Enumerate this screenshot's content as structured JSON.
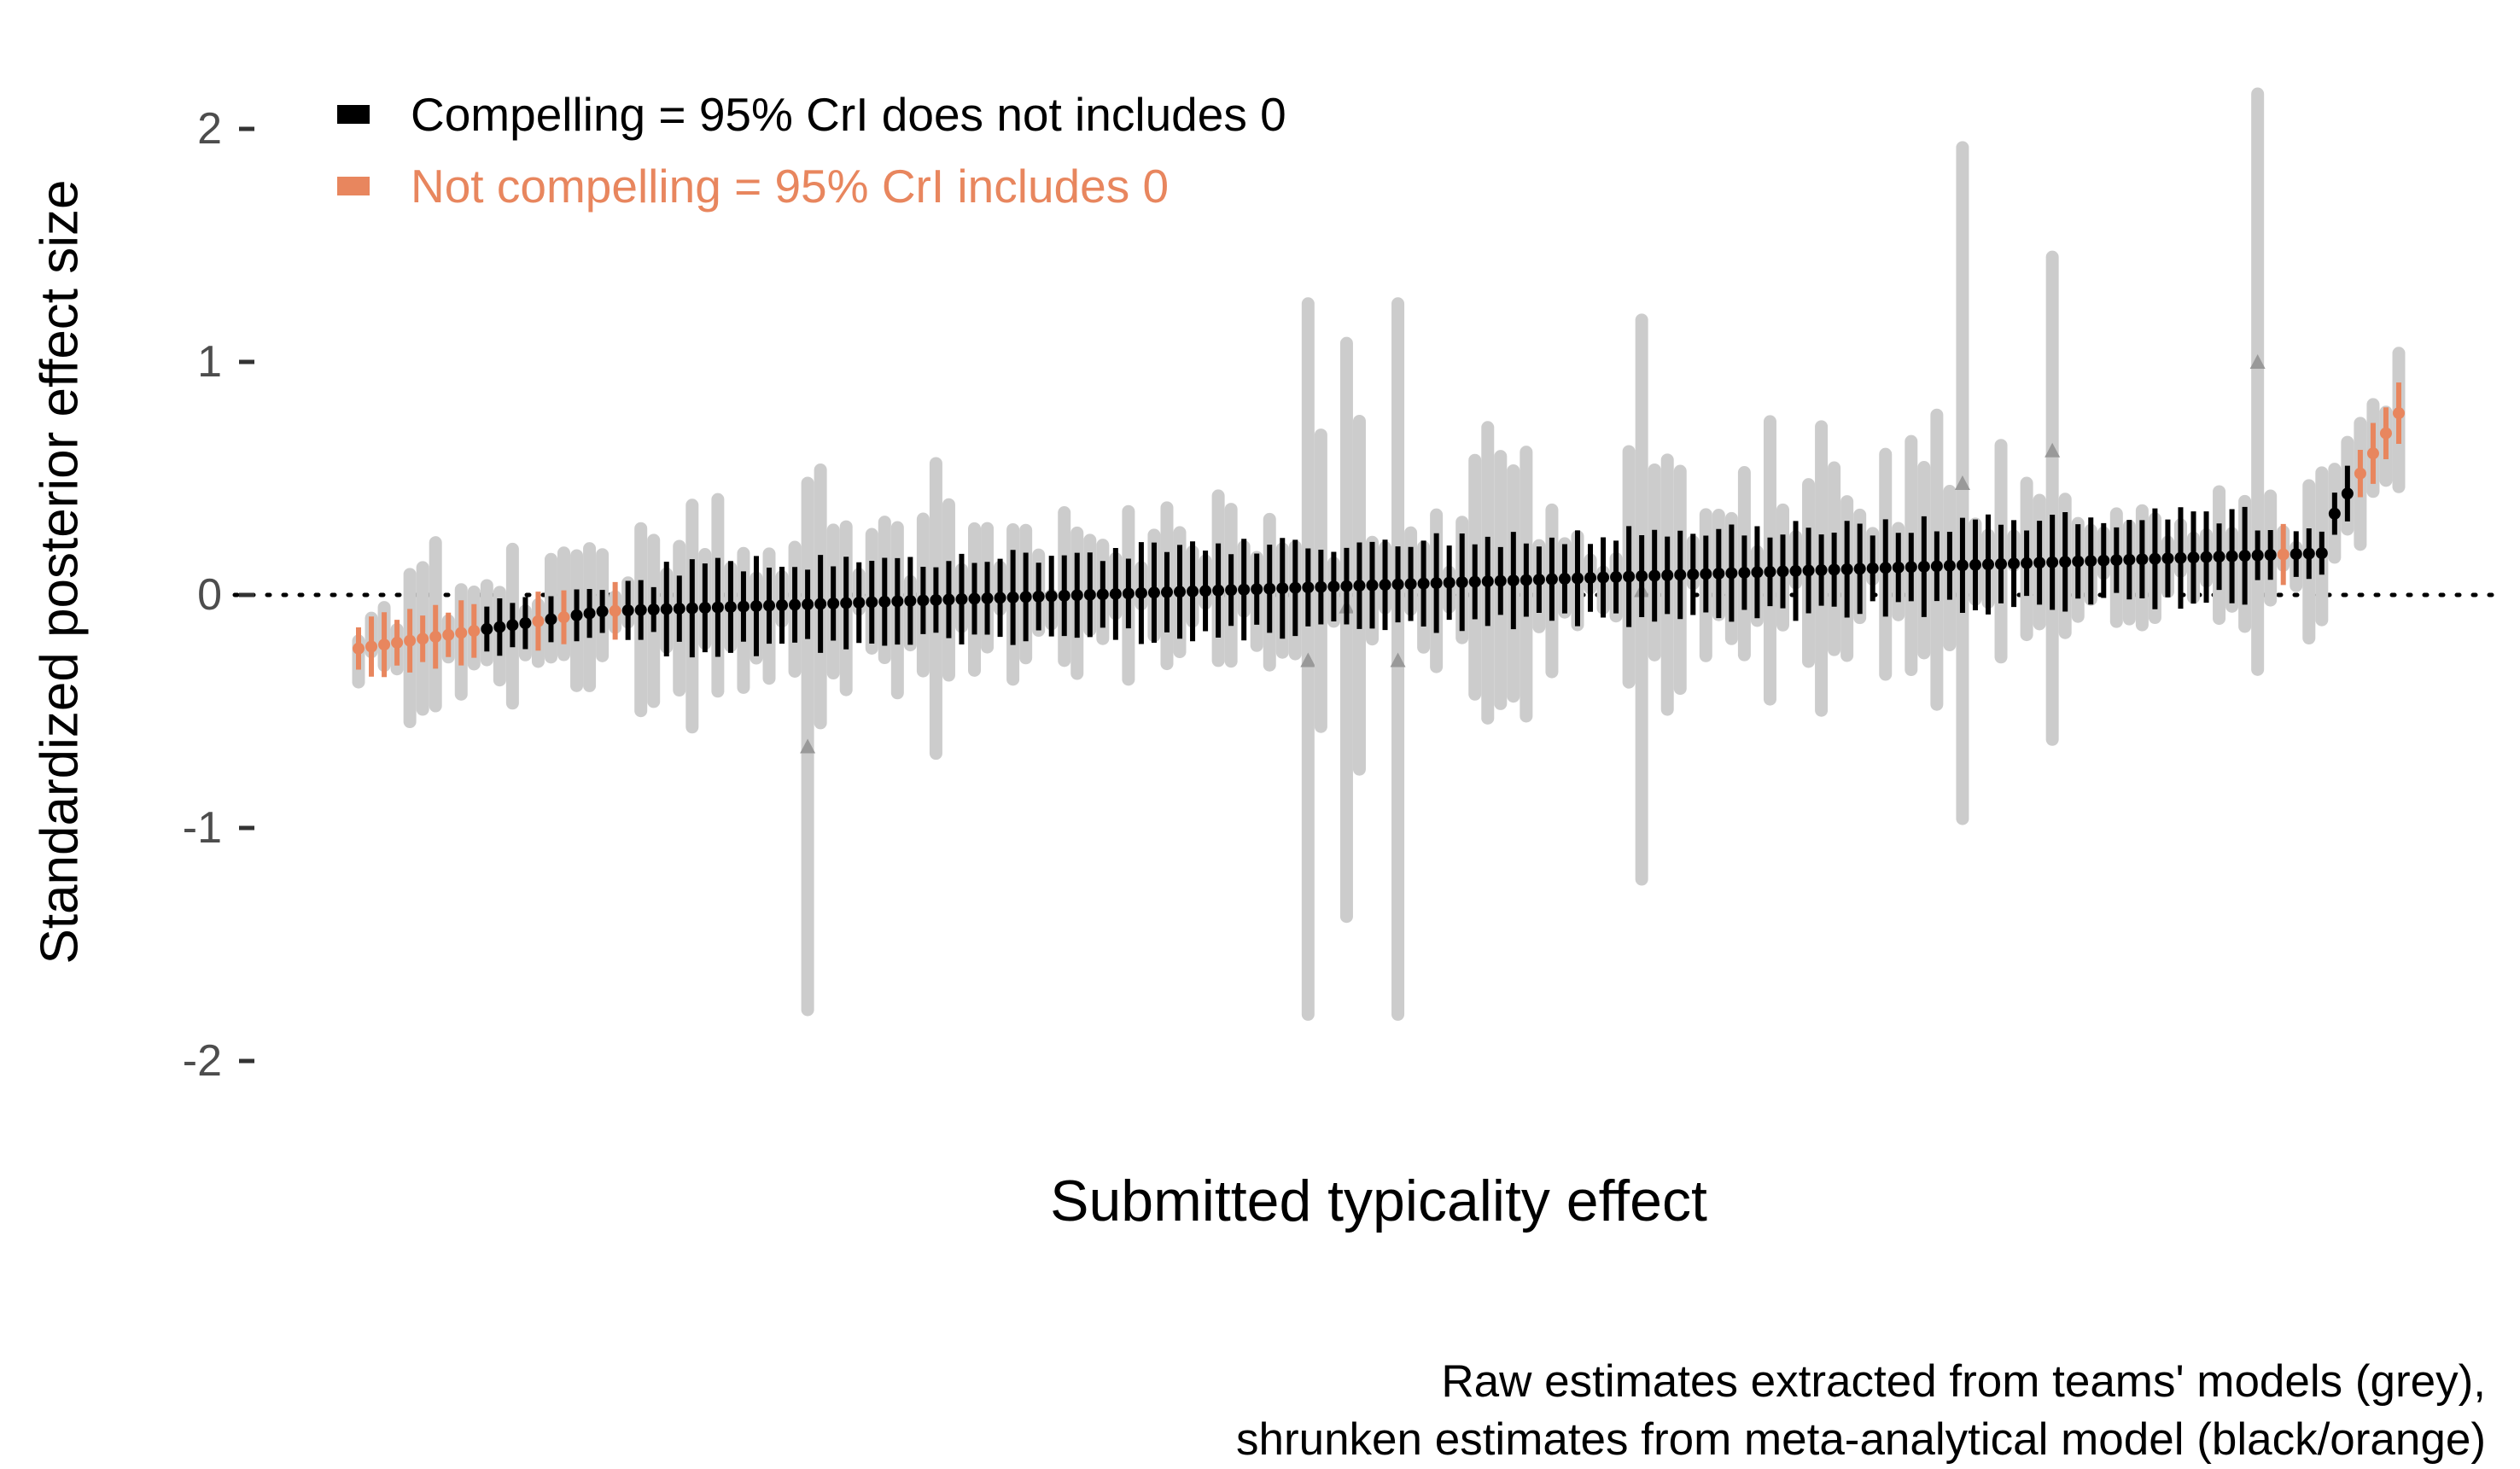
{
  "chart_data": {
    "type": "errorbar",
    "ylabel": "Standardized posterior effect size",
    "xlabel": "Submitted typicality effect",
    "caption_lines": [
      "Raw estimates extracted from teams' models (grey),",
      "shrunken estimates from meta-analytical model (black/orange)"
    ],
    "ylim": [
      -2,
      2
    ],
    "yticks": [
      {
        "value": 2,
        "label": "2"
      },
      {
        "value": 1,
        "label": "1"
      },
      {
        "value": 0,
        "label": "0"
      },
      {
        "value": -1,
        "label": "-1"
      },
      {
        "value": -2,
        "label": "-2"
      }
    ],
    "reference_line": {
      "y": 0,
      "style": "dotted"
    },
    "legend_placement": "top-left",
    "legend": [
      {
        "label": "Compelling = 95% CrI does not includes 0",
        "color": "#000000"
      },
      {
        "label": "Not compelling = 95% CrI includes 0",
        "color": "#E8865E"
      }
    ],
    "colors": {
      "raw": "#cccccc",
      "raw_marker": "#999999",
      "compelling": "#000000",
      "not_compelling": "#E8865E"
    },
    "n_analyses": 160,
    "shrunk_estimate_range": [
      -0.23,
      0.78
    ],
    "notable_raw_intervals": [
      {
        "index": 35,
        "low": -1.78,
        "high": 0.48,
        "estimate": -0.65
      },
      {
        "index": 74,
        "low": -1.8,
        "high": 1.25,
        "estimate": -0.28
      },
      {
        "index": 77,
        "low": -1.38,
        "high": 1.08,
        "estimate": -0.05
      },
      {
        "index": 81,
        "low": -1.8,
        "high": 1.25,
        "estimate": -0.28
      },
      {
        "index": 100,
        "low": -1.22,
        "high": 1.18,
        "estimate": 0.02
      },
      {
        "index": 125,
        "low": -0.96,
        "high": 1.92,
        "estimate": 0.48
      },
      {
        "index": 132,
        "low": -0.62,
        "high": 1.45,
        "estimate": 0.62
      },
      {
        "index": 148,
        "low": -0.32,
        "high": 2.15,
        "estimate": 1.0
      }
    ]
  }
}
